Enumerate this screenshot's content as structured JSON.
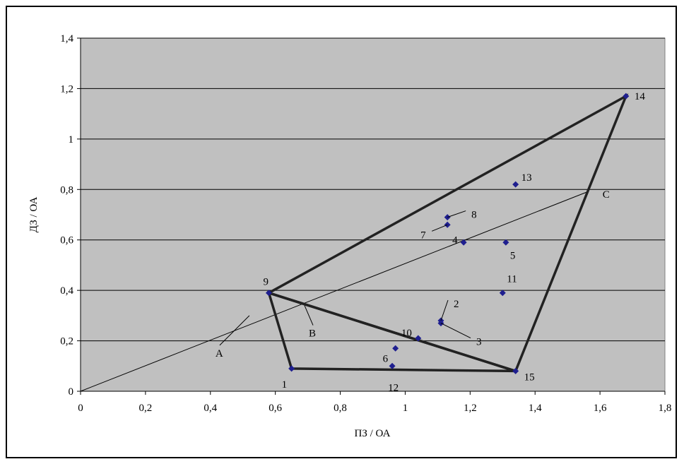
{
  "chart_data": {
    "type": "scatter",
    "title": "",
    "xlabel": "ПЗ / ОА",
    "ylabel": "ДЗ / ОА",
    "xlim": [
      0,
      1.8
    ],
    "ylim": [
      0,
      1.4
    ],
    "x_ticks": [
      "0",
      "0,2",
      "0,4",
      "0,6",
      "0,8",
      "1",
      "1,2",
      "1,4",
      "1,6",
      "1,8"
    ],
    "y_ticks": [
      "0",
      "0,2",
      "0,4",
      "0,6",
      "0,8",
      "1",
      "1,2",
      "1,4"
    ],
    "grid": "horizontal",
    "plot_background": "#c0c0c0",
    "marker_color": "#1f1f8f",
    "points": [
      {
        "label": "1",
        "x": 0.65,
        "y": 0.09
      },
      {
        "label": "2",
        "x": 1.11,
        "y": 0.28
      },
      {
        "label": "3",
        "x": 1.11,
        "y": 0.27
      },
      {
        "label": "4",
        "x": 1.18,
        "y": 0.59
      },
      {
        "label": "5",
        "x": 1.31,
        "y": 0.59
      },
      {
        "label": "6",
        "x": 0.97,
        "y": 0.17
      },
      {
        "label": "7",
        "x": 1.13,
        "y": 0.66
      },
      {
        "label": "8",
        "x": 1.13,
        "y": 0.69
      },
      {
        "label": "9",
        "x": 0.58,
        "y": 0.39
      },
      {
        "label": "10",
        "x": 1.04,
        "y": 0.21
      },
      {
        "label": "11",
        "x": 1.3,
        "y": 0.39
      },
      {
        "label": "12",
        "x": 0.96,
        "y": 0.1
      },
      {
        "label": "13",
        "x": 1.34,
        "y": 0.82
      },
      {
        "label": "14",
        "x": 1.68,
        "y": 1.17
      },
      {
        "label": "15",
        "x": 1.34,
        "y": 0.08
      }
    ],
    "polygon_upper": {
      "vertices": [
        [
          0.58,
          0.39
        ],
        [
          1.68,
          1.17
        ],
        [
          1.34,
          0.08
        ]
      ]
    },
    "polygon_lower": {
      "vertices": [
        [
          0.58,
          0.39
        ],
        [
          0.65,
          0.09
        ],
        [
          1.34,
          0.08
        ]
      ]
    },
    "reference_line": {
      "from": [
        0,
        0
      ],
      "to": [
        1.56,
        0.79
      ]
    },
    "annotations": [
      {
        "label": "A",
        "point": [
          0.52,
          0.3
        ]
      },
      {
        "label": "B",
        "point": [
          0.69,
          0.34
        ]
      },
      {
        "label": "C",
        "point": [
          1.56,
          0.79
        ]
      }
    ]
  }
}
